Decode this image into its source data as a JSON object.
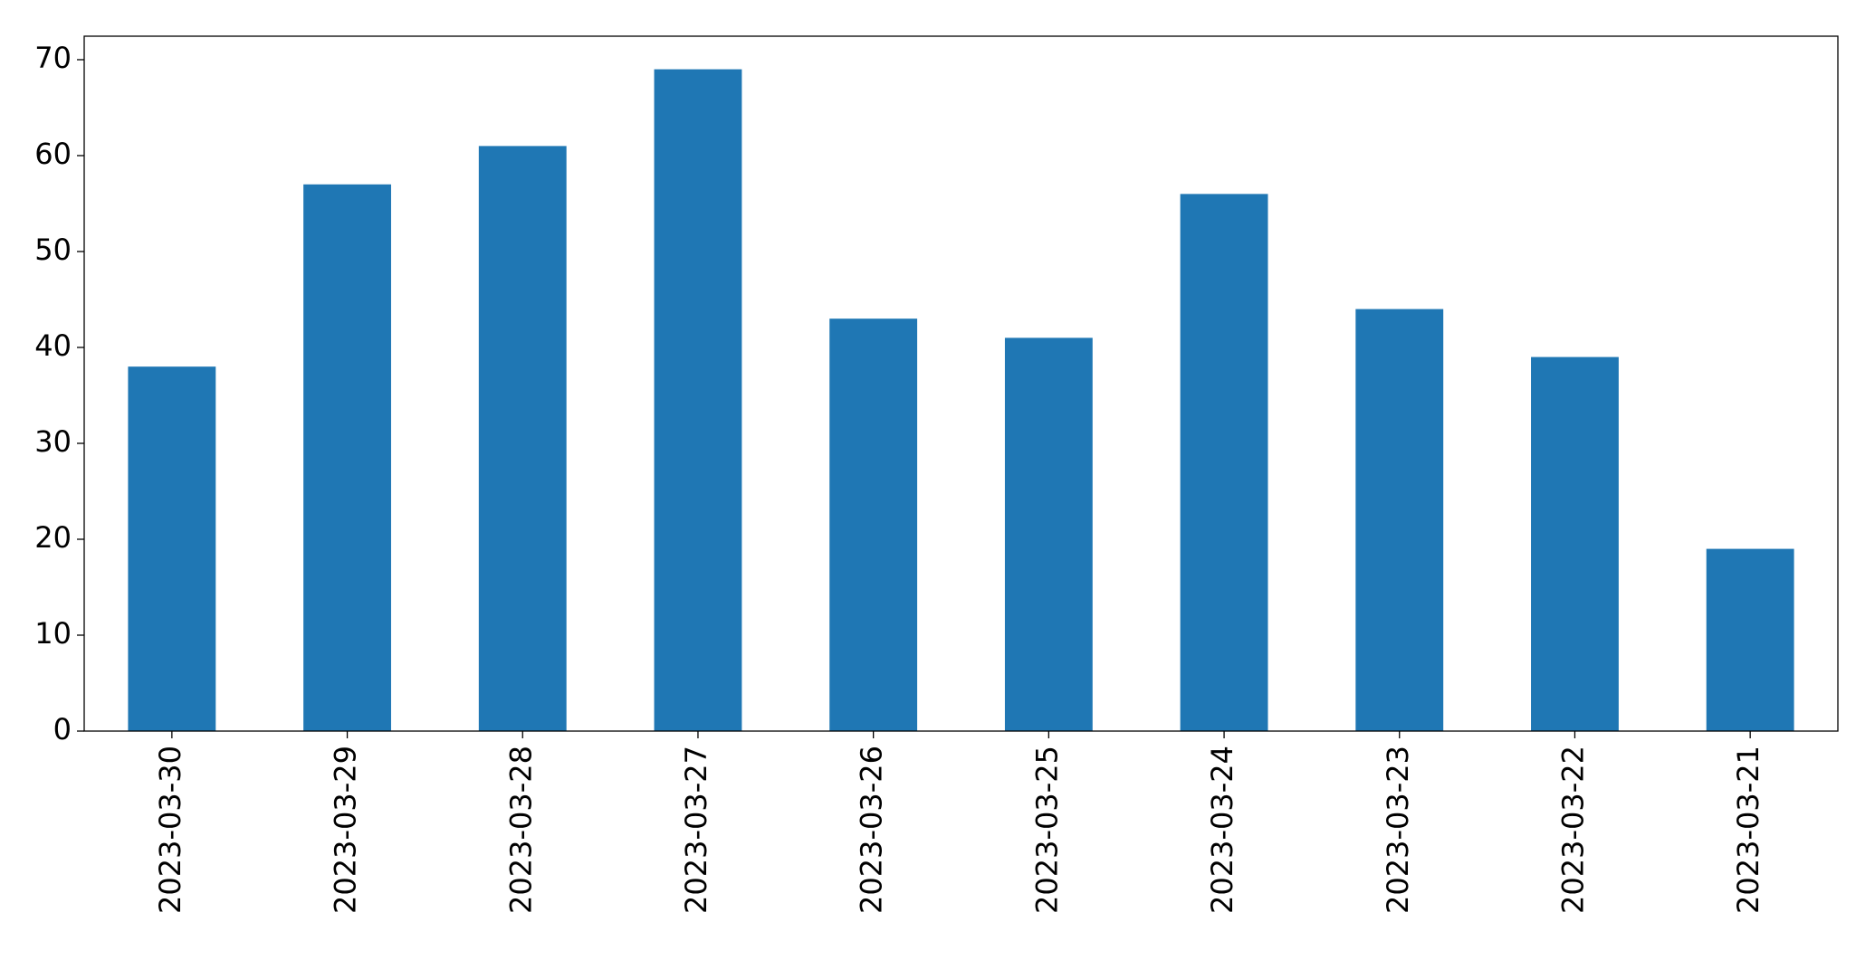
{
  "chart_data": {
    "type": "bar",
    "categories": [
      "2023-03-30",
      "2023-03-29",
      "2023-03-28",
      "2023-03-27",
      "2023-03-26",
      "2023-03-25",
      "2023-03-24",
      "2023-03-23",
      "2023-03-22",
      "2023-03-21"
    ],
    "values": [
      38,
      57,
      61,
      69,
      43,
      41,
      56,
      44,
      39,
      19
    ],
    "color": "#1f77b4",
    "ylim": [
      0,
      72.45
    ],
    "yticks": [
      0,
      10,
      20,
      30,
      40,
      50,
      60,
      70
    ],
    "grid": false
  }
}
